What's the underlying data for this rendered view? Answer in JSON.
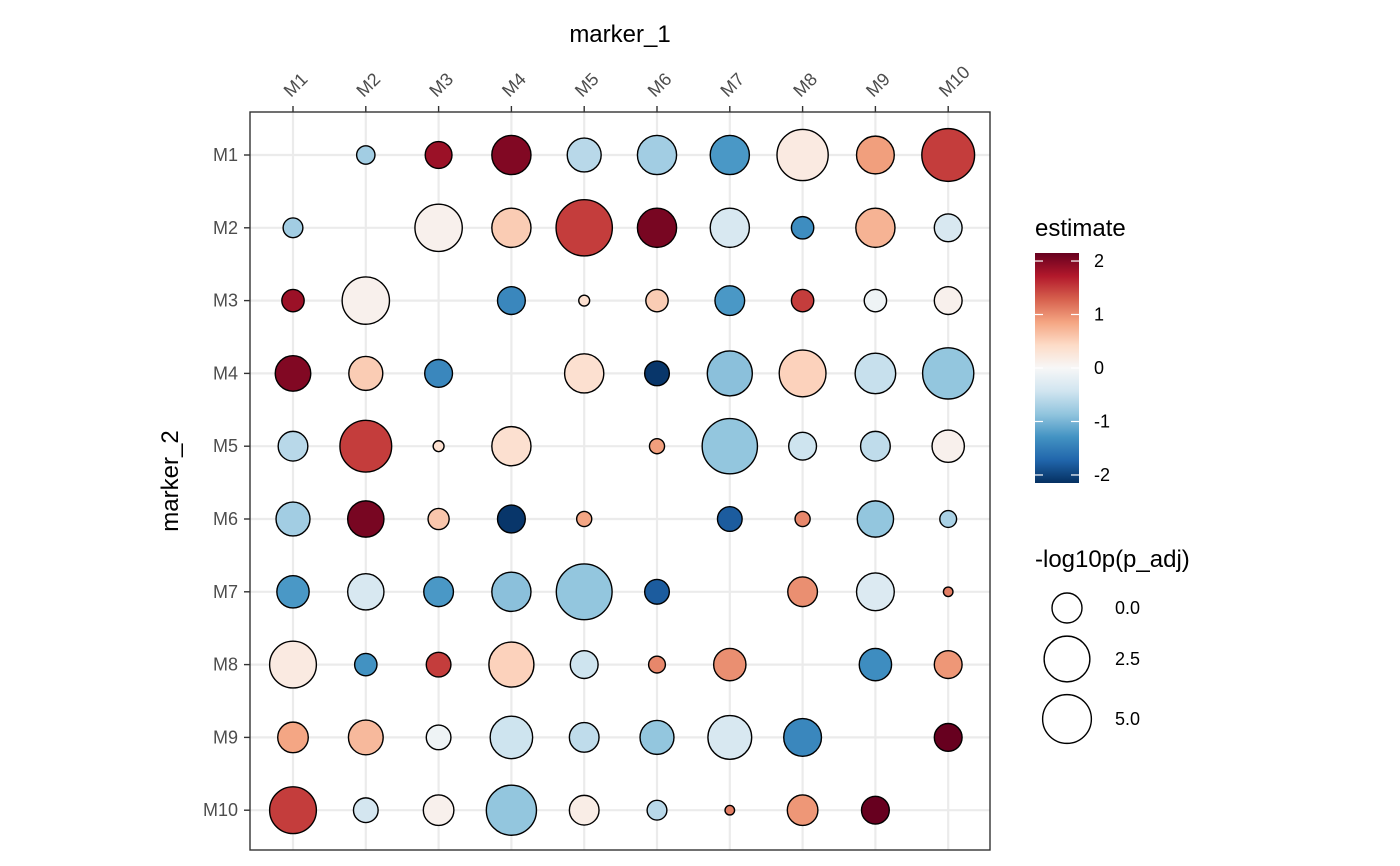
{
  "chart_data": {
    "type": "scatter",
    "subtype": "bubble-matrix",
    "title": "",
    "xlabel": "marker_1",
    "ylabel": "marker_2",
    "x_position": "top",
    "x_categories": [
      "M1",
      "M2",
      "M3",
      "M4",
      "M5",
      "M6",
      "M7",
      "M8",
      "M9",
      "M10"
    ],
    "y_categories": [
      "M1",
      "M2",
      "M3",
      "M4",
      "M5",
      "M6",
      "M7",
      "M8",
      "M9",
      "M10"
    ],
    "grid": true,
    "color_legend": {
      "title": "estimate",
      "breaks": [
        2,
        1,
        0,
        -1,
        -2
      ],
      "range": [
        -2.15,
        2.15
      ],
      "palette": [
        "#053061",
        "#2166ac",
        "#4393c3",
        "#92c5de",
        "#d1e5f0",
        "#f7f7f7",
        "#fddbc7",
        "#f4a582",
        "#d6604d",
        "#b2182b",
        "#67001f"
      ]
    },
    "size_legend": {
      "title": "-log10p(p_adj)",
      "breaks": [
        "0.0",
        "2.5",
        "5.0"
      ],
      "break_values": [
        0,
        2.5,
        5.0
      ],
      "range": [
        0,
        6.5
      ]
    },
    "legend_position": "right",
    "points": [
      {
        "x": "M2",
        "y": "M1",
        "estimate": -0.75,
        "neglog10p": 0.5
      },
      {
        "x": "M3",
        "y": "M1",
        "estimate": 1.85,
        "neglog10p": 1.2
      },
      {
        "x": "M4",
        "y": "M1",
        "estimate": 2.0,
        "neglog10p": 2.7
      },
      {
        "x": "M5",
        "y": "M1",
        "estimate": -0.6,
        "neglog10p": 2.0
      },
      {
        "x": "M6",
        "y": "M1",
        "estimate": -0.75,
        "neglog10p": 2.7
      },
      {
        "x": "M7",
        "y": "M1",
        "estimate": -1.25,
        "neglog10p": 2.7
      },
      {
        "x": "M8",
        "y": "M1",
        "estimate": 0.2,
        "neglog10p": 4.7
      },
      {
        "x": "M9",
        "y": "M1",
        "estimate": 0.9,
        "neglog10p": 2.5
      },
      {
        "x": "M10",
        "y": "M1",
        "estimate": 1.5,
        "neglog10p": 5.0
      },
      {
        "x": "M1",
        "y": "M2",
        "estimate": -0.75,
        "neglog10p": 0.6
      },
      {
        "x": "M3",
        "y": "M2",
        "estimate": 0.1,
        "neglog10p": 4.0
      },
      {
        "x": "M4",
        "y": "M2",
        "estimate": 0.55,
        "neglog10p": 2.7
      },
      {
        "x": "M5",
        "y": "M2",
        "estimate": 1.5,
        "neglog10p": 5.7
      },
      {
        "x": "M6",
        "y": "M2",
        "estimate": 2.05,
        "neglog10p": 2.7
      },
      {
        "x": "M7",
        "y": "M2",
        "estimate": -0.35,
        "neglog10p": 2.7
      },
      {
        "x": "M8",
        "y": "M2",
        "estimate": -1.35,
        "neglog10p": 0.8
      },
      {
        "x": "M9",
        "y": "M2",
        "estimate": 0.75,
        "neglog10p": 2.7
      },
      {
        "x": "M10",
        "y": "M2",
        "estimate": -0.35,
        "neglog10p": 1.3
      },
      {
        "x": "M1",
        "y": "M3",
        "estimate": 1.85,
        "neglog10p": 0.8
      },
      {
        "x": "M2",
        "y": "M3",
        "estimate": 0.1,
        "neglog10p": 4.0
      },
      {
        "x": "M4",
        "y": "M3",
        "estimate": -1.4,
        "neglog10p": 1.3
      },
      {
        "x": "M5",
        "y": "M3",
        "estimate": 0.35,
        "neglog10p": 0.1
      },
      {
        "x": "M6",
        "y": "M3",
        "estimate": 0.55,
        "neglog10p": 0.8
      },
      {
        "x": "M7",
        "y": "M3",
        "estimate": -1.25,
        "neglog10p": 1.5
      },
      {
        "x": "M8",
        "y": "M3",
        "estimate": 1.5,
        "neglog10p": 0.8
      },
      {
        "x": "M9",
        "y": "M3",
        "estimate": -0.1,
        "neglog10p": 0.8
      },
      {
        "x": "M10",
        "y": "M3",
        "estimate": 0.1,
        "neglog10p": 1.3
      },
      {
        "x": "M1",
        "y": "M4",
        "estimate": 2.0,
        "neglog10p": 2.2
      },
      {
        "x": "M2",
        "y": "M4",
        "estimate": 0.55,
        "neglog10p": 2.0
      },
      {
        "x": "M3",
        "y": "M4",
        "estimate": -1.4,
        "neglog10p": 1.3
      },
      {
        "x": "M5",
        "y": "M4",
        "estimate": 0.35,
        "neglog10p": 2.7
      },
      {
        "x": "M6",
        "y": "M4",
        "estimate": -2.1,
        "neglog10p": 1.0
      },
      {
        "x": "M7",
        "y": "M4",
        "estimate": -0.9,
        "neglog10p": 3.6
      },
      {
        "x": "M8",
        "y": "M4",
        "estimate": 0.5,
        "neglog10p": 3.9
      },
      {
        "x": "M9",
        "y": "M4",
        "estimate": -0.5,
        "neglog10p": 2.9
      },
      {
        "x": "M10",
        "y": "M4",
        "estimate": -0.85,
        "neglog10p": 4.7
      },
      {
        "x": "M1",
        "y": "M5",
        "estimate": -0.6,
        "neglog10p": 1.5
      },
      {
        "x": "M2",
        "y": "M5",
        "estimate": 1.5,
        "neglog10p": 4.8
      },
      {
        "x": "M3",
        "y": "M5",
        "estimate": 0.35,
        "neglog10p": 0.1
      },
      {
        "x": "M4",
        "y": "M5",
        "estimate": 0.35,
        "neglog10p": 2.7
      },
      {
        "x": "M6",
        "y": "M5",
        "estimate": 0.9,
        "neglog10p": 0.3
      },
      {
        "x": "M7",
        "y": "M5",
        "estimate": -0.85,
        "neglog10p": 5.5
      },
      {
        "x": "M8",
        "y": "M5",
        "estimate": -0.45,
        "neglog10p": 1.3
      },
      {
        "x": "M9",
        "y": "M5",
        "estimate": -0.55,
        "neglog10p": 1.5
      },
      {
        "x": "M10",
        "y": "M5",
        "estimate": 0.1,
        "neglog10p": 1.8
      },
      {
        "x": "M1",
        "y": "M6",
        "estimate": -0.75,
        "neglog10p": 2.0
      },
      {
        "x": "M2",
        "y": "M6",
        "estimate": 2.05,
        "neglog10p": 2.3
      },
      {
        "x": "M3",
        "y": "M6",
        "estimate": 0.6,
        "neglog10p": 0.7
      },
      {
        "x": "M4",
        "y": "M6",
        "estimate": -2.1,
        "neglog10p": 1.3
      },
      {
        "x": "M5",
        "y": "M6",
        "estimate": 0.85,
        "neglog10p": 0.3
      },
      {
        "x": "M7",
        "y": "M6",
        "estimate": -1.8,
        "neglog10p": 1.0
      },
      {
        "x": "M8",
        "y": "M6",
        "estimate": 1.05,
        "neglog10p": 0.3
      },
      {
        "x": "M9",
        "y": "M6",
        "estimate": -0.85,
        "neglog10p": 2.3
      },
      {
        "x": "M10",
        "y": "M6",
        "estimate": -0.7,
        "neglog10p": 0.4
      },
      {
        "x": "M1",
        "y": "M7",
        "estimate": -1.25,
        "neglog10p": 1.8
      },
      {
        "x": "M2",
        "y": "M7",
        "estimate": -0.35,
        "neglog10p": 2.3
      },
      {
        "x": "M3",
        "y": "M7",
        "estimate": -1.25,
        "neglog10p": 1.5
      },
      {
        "x": "M4",
        "y": "M7",
        "estimate": -0.9,
        "neglog10p": 2.7
      },
      {
        "x": "M5",
        "y": "M7",
        "estimate": -0.85,
        "neglog10p": 5.6
      },
      {
        "x": "M6",
        "y": "M7",
        "estimate": -1.8,
        "neglog10p": 1.0
      },
      {
        "x": "M8",
        "y": "M7",
        "estimate": 1.0,
        "neglog10p": 1.5
      },
      {
        "x": "M9",
        "y": "M7",
        "estimate": -0.3,
        "neglog10p": 2.5
      },
      {
        "x": "M10",
        "y": "M7",
        "estimate": 1.1,
        "neglog10p": 0.05
      },
      {
        "x": "M1",
        "y": "M8",
        "estimate": 0.2,
        "neglog10p": 3.9
      },
      {
        "x": "M2",
        "y": "M8",
        "estimate": -1.3,
        "neglog10p": 0.8
      },
      {
        "x": "M3",
        "y": "M8",
        "estimate": 1.5,
        "neglog10p": 1.0
      },
      {
        "x": "M4",
        "y": "M8",
        "estimate": 0.5,
        "neglog10p": 3.6
      },
      {
        "x": "M5",
        "y": "M8",
        "estimate": -0.45,
        "neglog10p": 1.3
      },
      {
        "x": "M6",
        "y": "M8",
        "estimate": 1.05,
        "neglog10p": 0.4
      },
      {
        "x": "M7",
        "y": "M8",
        "estimate": 1.0,
        "neglog10p": 1.8
      },
      {
        "x": "M9",
        "y": "M8",
        "estimate": -1.35,
        "neglog10p": 1.8
      },
      {
        "x": "M10",
        "y": "M8",
        "estimate": 0.95,
        "neglog10p": 1.3
      },
      {
        "x": "M1",
        "y": "M9",
        "estimate": 0.85,
        "neglog10p": 1.6
      },
      {
        "x": "M2",
        "y": "M9",
        "estimate": 0.7,
        "neglog10p": 2.1
      },
      {
        "x": "M3",
        "y": "M9",
        "estimate": -0.1,
        "neglog10p": 1.0
      },
      {
        "x": "M4",
        "y": "M9",
        "estimate": -0.45,
        "neglog10p": 3.2
      },
      {
        "x": "M5",
        "y": "M9",
        "estimate": -0.55,
        "neglog10p": 1.5
      },
      {
        "x": "M6",
        "y": "M9",
        "estimate": -0.85,
        "neglog10p": 2.0
      },
      {
        "x": "M7",
        "y": "M9",
        "estimate": -0.35,
        "neglog10p": 3.4
      },
      {
        "x": "M8",
        "y": "M9",
        "estimate": -1.4,
        "neglog10p": 2.5
      },
      {
        "x": "M10",
        "y": "M9",
        "estimate": 2.3,
        "neglog10p": 1.3
      },
      {
        "x": "M1",
        "y": "M10",
        "estimate": 1.5,
        "neglog10p": 3.9
      },
      {
        "x": "M2",
        "y": "M10",
        "estimate": -0.4,
        "neglog10p": 1.0
      },
      {
        "x": "M3",
        "y": "M10",
        "estimate": 0.1,
        "neglog10p": 1.6
      },
      {
        "x": "M4",
        "y": "M10",
        "estimate": -0.85,
        "neglog10p": 4.5
      },
      {
        "x": "M5",
        "y": "M10",
        "estimate": 0.15,
        "neglog10p": 1.5
      },
      {
        "x": "M6",
        "y": "M10",
        "estimate": -0.6,
        "neglog10p": 0.6
      },
      {
        "x": "M7",
        "y": "M10",
        "estimate": 1.1,
        "neglog10p": 0.05
      },
      {
        "x": "M8",
        "y": "M10",
        "estimate": 0.95,
        "neglog10p": 1.6
      },
      {
        "x": "M9",
        "y": "M10",
        "estimate": 2.3,
        "neglog10p": 1.3
      }
    ]
  }
}
